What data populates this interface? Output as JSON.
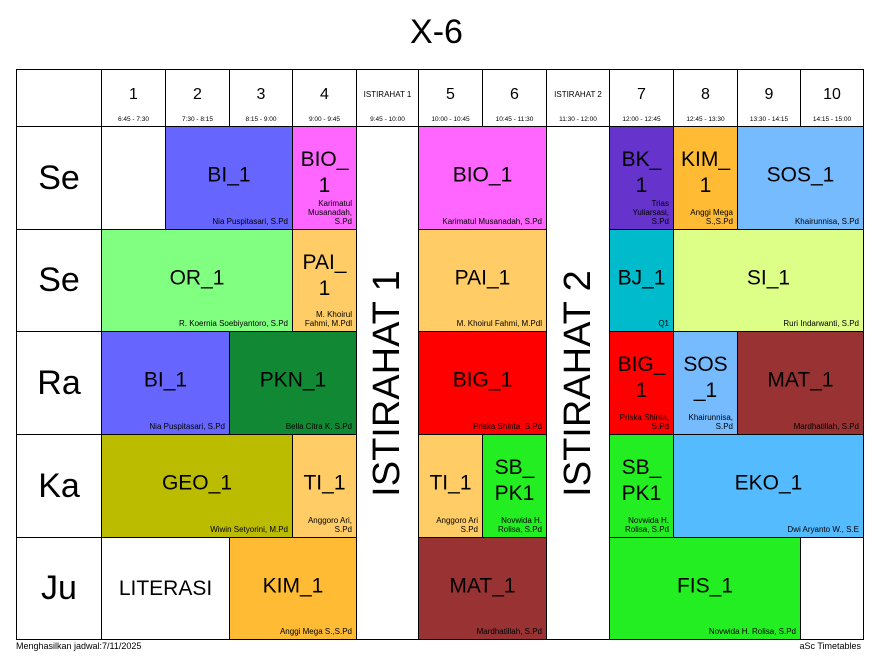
{
  "title": "X-6",
  "headers": [
    {
      "num": "1",
      "time": "6:45 - 7:30"
    },
    {
      "num": "2",
      "time": "7:30 - 8:15"
    },
    {
      "num": "3",
      "time": "8:15 - 9:00"
    },
    {
      "num": "4",
      "time": "9:00 - 9:45"
    },
    {
      "brk": "ISTIRAHAT 1",
      "time": "9:45 - 10:00"
    },
    {
      "num": "5",
      "time": "10:00 - 10:45"
    },
    {
      "num": "6",
      "time": "10:45 - 11:30"
    },
    {
      "brk": "ISTIRAHAT 2",
      "time": "11:30 - 12:00"
    },
    {
      "num": "7",
      "time": "12:00 - 12:45"
    },
    {
      "num": "8",
      "time": "12:45 - 13:30"
    },
    {
      "num": "9",
      "time": "13:30 - 14:15"
    },
    {
      "num": "10",
      "time": "14:15 - 15:00"
    }
  ],
  "days": [
    "Se",
    "Se",
    "Ra",
    "Ka",
    "Ju"
  ],
  "breaks": [
    "ISTIRAHAT 1",
    "ISTIRAHAT 2"
  ],
  "lessons": [
    {
      "row": 0,
      "c0": 1,
      "c1": 1,
      "subject": "",
      "teacher": "",
      "color": "#ffffff"
    },
    {
      "row": 0,
      "c0": 2,
      "c1": 3,
      "subject": "BI_1",
      "teacher": "Nia Puspitasari, S.Pd",
      "color": "#6666ff"
    },
    {
      "row": 0,
      "c0": 4,
      "c1": 4,
      "subject": "BIO_\n1",
      "teacher": "Karimatul\nMusanadah,\nS.Pd",
      "color": "#ff66ff"
    },
    {
      "row": 0,
      "c0": 5,
      "c1": 6,
      "subject": "BIO_1",
      "teacher": "Karimatul Musanadah, S.Pd",
      "color": "#ff66ff"
    },
    {
      "row": 0,
      "c0": 7,
      "c1": 7,
      "subject": "BK_\n1",
      "teacher": "Trias\nYuliarsasi,\nS.Pd",
      "color": "#6633cc"
    },
    {
      "row": 0,
      "c0": 8,
      "c1": 8,
      "subject": "KIM_\n1",
      "teacher": "Anggi Mega\nS.,S.Pd",
      "color": "#ffbb33"
    },
    {
      "row": 0,
      "c0": 9,
      "c1": 10,
      "subject": "SOS_1",
      "teacher": "Khairunnisa, S.Pd",
      "color": "#77bbff"
    },
    {
      "row": 1,
      "c0": 1,
      "c1": 3,
      "subject": "OR_1",
      "teacher": "R. Koernia Soebiyantoro, S.Pd",
      "color": "#80ff80"
    },
    {
      "row": 1,
      "c0": 4,
      "c1": 4,
      "subject": "PAI_\n1",
      "teacher": "M. Khoirul\nFahmi, M.Pdl",
      "color": "#ffcc66"
    },
    {
      "row": 1,
      "c0": 5,
      "c1": 6,
      "subject": "PAI_1",
      "teacher": "M. Khoirul Fahmi, M.Pdl",
      "color": "#ffcc66"
    },
    {
      "row": 1,
      "c0": 7,
      "c1": 7,
      "subject": "BJ_1",
      "teacher": "Q1",
      "color": "#00bbcc"
    },
    {
      "row": 1,
      "c0": 8,
      "c1": 10,
      "subject": "SI_1",
      "teacher": "Ruri Indarwanti, S.Pd",
      "color": "#ddff88"
    },
    {
      "row": 2,
      "c0": 1,
      "c1": 2,
      "subject": "BI_1",
      "teacher": "Nia Puspitasari, S.Pd",
      "color": "#6666ff"
    },
    {
      "row": 2,
      "c0": 3,
      "c1": 4,
      "subject": "PKN_1",
      "teacher": "Bella Citra K, S.Pd",
      "color": "#118833"
    },
    {
      "row": 2,
      "c0": 5,
      "c1": 6,
      "subject": "BIG_1",
      "teacher": "Priska Shinta, S.Pd",
      "color": "#ff0000"
    },
    {
      "row": 2,
      "c0": 7,
      "c1": 7,
      "subject": "BIG_\n1",
      "teacher": "Priska Shinta,\nS.Pd",
      "color": "#ff0000"
    },
    {
      "row": 2,
      "c0": 8,
      "c1": 8,
      "subject": "SOS\n_1",
      "teacher": "Khairunnisa,\nS.Pd",
      "color": "#77bbff"
    },
    {
      "row": 2,
      "c0": 9,
      "c1": 10,
      "subject": "MAT_1",
      "teacher": "Mardhatillah, S.Pd",
      "color": "#993333"
    },
    {
      "row": 3,
      "c0": 1,
      "c1": 3,
      "subject": "GEO_1",
      "teacher": "Wiwin Setyorini, M.Pd",
      "color": "#bbbb00"
    },
    {
      "row": 3,
      "c0": 4,
      "c1": 4,
      "subject": "TI_1",
      "teacher": "Anggoro Ari,\nS.Pd",
      "color": "#ffcc66"
    },
    {
      "row": 3,
      "c0": 5,
      "c1": 5,
      "subject": "TI_1",
      "teacher": "Anggoro Ari\nS.Pd",
      "color": "#ffcc66"
    },
    {
      "row": 3,
      "c0": 6,
      "c1": 6,
      "subject": "SB_\nPK1",
      "teacher": "Novwida H.\nRolisa, S.Pd",
      "color": "#22ee22"
    },
    {
      "row": 3,
      "c0": 7,
      "c1": 7,
      "subject": "SB_\nPK1",
      "teacher": "Novwida H.\nRolisa, S.Pd",
      "color": "#22ee22"
    },
    {
      "row": 3,
      "c0": 8,
      "c1": 10,
      "subject": "EKO_1",
      "teacher": "Dwi Aryanto W., S.E",
      "color": "#55bbff"
    },
    {
      "row": 4,
      "c0": 1,
      "c1": 2,
      "subject": "LITERASI",
      "teacher": "",
      "color": "#ffffff"
    },
    {
      "row": 4,
      "c0": 3,
      "c1": 4,
      "subject": "KIM_1",
      "teacher": "Anggi Mega S.,S.Pd",
      "color": "#ffbb33"
    },
    {
      "row": 4,
      "c0": 5,
      "c1": 6,
      "subject": "MAT_1",
      "teacher": "Mardhatillah, S.Pd",
      "color": "#993333"
    },
    {
      "row": 4,
      "c0": 7,
      "c1": 9,
      "subject": "FIS_1",
      "teacher": "Novwida H. Rolisa, S.Pd",
      "color": "#22ee22"
    },
    {
      "row": 4,
      "c0": 10,
      "c1": 10,
      "subject": "",
      "teacher": "",
      "color": "#ffffff"
    }
  ],
  "footer": {
    "left": "Menghasilkan jadwal:7/11/2025",
    "right": "aSc Timetables"
  }
}
